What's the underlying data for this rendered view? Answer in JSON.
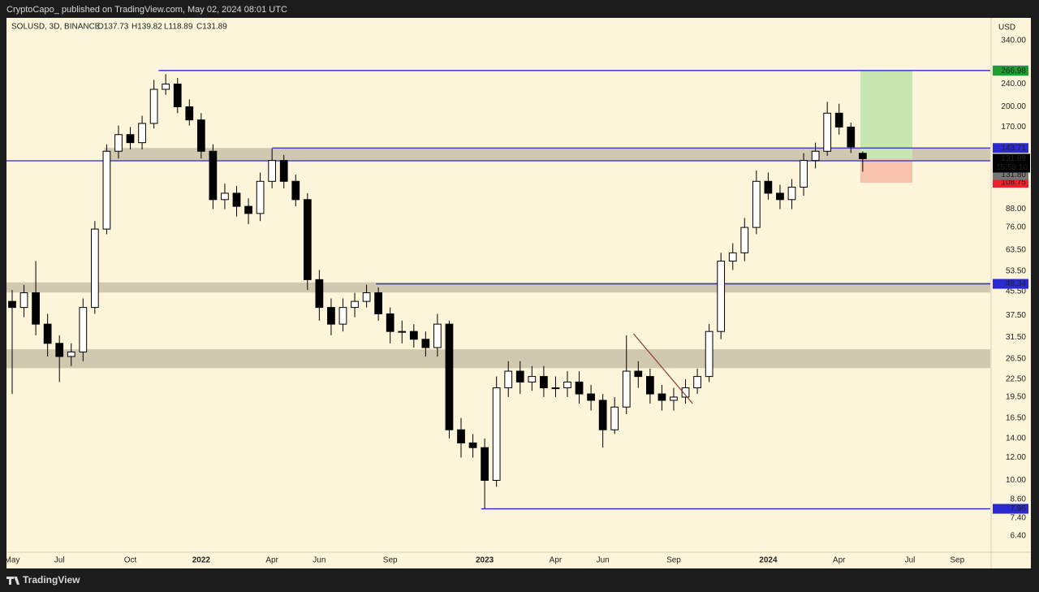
{
  "header": {
    "published": "CryptoCapo_  published on TradingView.com, May 02, 2024 08:01 UTC",
    "footer": "TradingView"
  },
  "chart_data": {
    "type": "candlestick",
    "title": "SOLUSD, 3D, BINANCE",
    "ohlc_labels": [
      "O137.73",
      "H139.82",
      "L118.89",
      "C131.89"
    ],
    "currency": "USD",
    "countdown": "15:58:10",
    "log_scale": true,
    "grid": false,
    "ylim": [
      5.62,
      408
    ],
    "xlim": [
      -0.24,
      41.4
    ],
    "yticks": [
      {
        "value": 340,
        "label": "340.00"
      },
      {
        "value": 240,
        "label": "240.00"
      },
      {
        "value": 200,
        "label": "200.00"
      },
      {
        "value": 170,
        "label": "170.00"
      },
      {
        "value": 88,
        "label": "88.00"
      },
      {
        "value": 76,
        "label": "76.00"
      },
      {
        "value": 63.5,
        "label": "63.50"
      },
      {
        "value": 53.5,
        "label": "53.50"
      },
      {
        "value": 45.5,
        "label": "45.50"
      },
      {
        "value": 37.5,
        "label": "37.50"
      },
      {
        "value": 31.5,
        "label": "31.50"
      },
      {
        "value": 26.5,
        "label": "26.50"
      },
      {
        "value": 22.5,
        "label": "22.50"
      },
      {
        "value": 19.5,
        "label": "19.50"
      },
      {
        "value": 16.5,
        "label": "16.50"
      },
      {
        "value": 14,
        "label": "14.00"
      },
      {
        "value": 12,
        "label": "12.00"
      },
      {
        "value": 10,
        "label": "10.00"
      },
      {
        "value": 8.6,
        "label": "8.60"
      },
      {
        "value": 7.4,
        "label": "7.40"
      },
      {
        "value": 6.4,
        "label": "6.40"
      }
    ],
    "xticks": [
      {
        "value": 0,
        "label": "May"
      },
      {
        "value": 2,
        "label": "Jul"
      },
      {
        "value": 5,
        "label": "Oct"
      },
      {
        "value": 8,
        "label": "2022"
      },
      {
        "value": 11,
        "label": "Apr"
      },
      {
        "value": 13,
        "label": "Jun"
      },
      {
        "value": 16,
        "label": "Sep"
      },
      {
        "value": 20,
        "label": "2023"
      },
      {
        "value": 23,
        "label": "Apr"
      },
      {
        "value": 25,
        "label": "Jun"
      },
      {
        "value": 28,
        "label": "Sep"
      },
      {
        "value": 32,
        "label": "2024"
      },
      {
        "value": 35,
        "label": "Apr"
      },
      {
        "value": 38,
        "label": "Jul"
      },
      {
        "value": 40,
        "label": "Sep"
      }
    ],
    "x": [
      0,
      0.5,
      1,
      1.5,
      2,
      2.5,
      3,
      3.5,
      4,
      4.5,
      5,
      5.5,
      6,
      6.5,
      7,
      7.5,
      8,
      8.5,
      9,
      9.5,
      10,
      10.5,
      11,
      11.5,
      12,
      12.5,
      13,
      13.5,
      14,
      14.5,
      15,
      15.5,
      16,
      16.5,
      17,
      17.5,
      18,
      18.5,
      19,
      19.5,
      20,
      20.5,
      21,
      21.5,
      22,
      22.5,
      23,
      23.5,
      24,
      24.5,
      25,
      25.5,
      26,
      26.5,
      27,
      27.5,
      28,
      28.5,
      29,
      29.5,
      30,
      30.5,
      31,
      31.5,
      32,
      32.5,
      33,
      33.5,
      34,
      34.5,
      35,
      35.5,
      36
    ],
    "open": [
      42,
      40,
      45,
      35,
      30,
      27,
      28,
      40,
      75,
      140,
      160,
      150,
      175,
      230,
      240,
      200,
      180,
      140,
      95,
      100,
      90,
      85,
      110,
      130,
      110,
      95,
      50,
      40,
      35,
      40,
      42,
      45,
      38,
      33,
      33,
      31,
      29,
      35,
      15,
      13.5,
      13,
      10,
      21,
      24,
      22,
      23,
      21,
      21,
      22,
      20,
      19,
      15,
      18,
      24,
      23,
      20,
      19,
      19.5,
      21,
      23,
      33,
      58,
      62,
      76,
      110,
      100,
      95,
      105,
      130,
      140,
      190,
      170,
      137.73
    ],
    "high": [
      46,
      48,
      58,
      38,
      32,
      30,
      43,
      80,
      148,
      172,
      170,
      186,
      248,
      260,
      252,
      212,
      190,
      148,
      108,
      106,
      96,
      118,
      143,
      136,
      116,
      100,
      54,
      43,
      43,
      45,
      48,
      47,
      40,
      36,
      35,
      33,
      38,
      36,
      16.5,
      14.5,
      14,
      23,
      26,
      26,
      25,
      25,
      23,
      24,
      24,
      21.5,
      20,
      19.5,
      32,
      26,
      24.5,
      21.5,
      21,
      22.5,
      24.5,
      35,
      62,
      67,
      82,
      120,
      118,
      107,
      112,
      138,
      150,
      208,
      205,
      176,
      139.82
    ],
    "low": [
      20,
      37,
      32,
      27,
      22,
      25,
      26,
      38,
      72,
      132,
      142,
      142,
      168,
      220,
      190,
      172,
      132,
      88,
      88,
      83,
      78,
      80,
      104,
      104,
      90,
      46,
      36,
      32,
      33,
      37,
      40,
      36,
      30,
      30,
      29,
      27,
      27,
      14,
      12,
      12,
      7.96,
      9.5,
      19.5,
      20,
      20.5,
      19.5,
      19.5,
      19.5,
      18.5,
      17.5,
      13,
      14.5,
      17,
      21,
      18.5,
      17.5,
      17.5,
      18.5,
      20,
      22,
      31,
      54,
      58,
      72,
      95,
      88,
      88,
      98,
      122,
      135,
      160,
      138,
      118.89
    ],
    "close": [
      40,
      45,
      35,
      30,
      27,
      28,
      40,
      75,
      140,
      160,
      150,
      175,
      230,
      240,
      200,
      180,
      140,
      95,
      100,
      90,
      85,
      110,
      130,
      110,
      95,
      50,
      40,
      35,
      40,
      42,
      45,
      38,
      33,
      33,
      31,
      29,
      35,
      15,
      13.5,
      13,
      10,
      21,
      24,
      22,
      23,
      21,
      21,
      22,
      20,
      19,
      15,
      18,
      24,
      23,
      20,
      19,
      19.5,
      21,
      23,
      33,
      58,
      62,
      76,
      110,
      100,
      95,
      105,
      130,
      140,
      190,
      170,
      145,
      131.89
    ],
    "up_color": "#ffffff",
    "down_color": "#000000",
    "zones": [
      {
        "low": 129.72,
        "high": 143.71,
        "from": 3.9
      },
      {
        "low": 45.1,
        "high": 48.9
      },
      {
        "low": 24.6,
        "high": 28.6
      }
    ],
    "zone_color": "#c9c0a8",
    "hlines": [
      {
        "value": 267.52,
        "from": 6.2
      },
      {
        "value": 143.71,
        "from": 11
      },
      {
        "value": 129.72
      },
      {
        "value": 48.34,
        "from": 15.4
      },
      {
        "value": 7.96,
        "from": 19.85
      }
    ],
    "line_color": "#2a2ad0",
    "trendline": {
      "x": [
        26.3,
        28.8
      ],
      "y": [
        32.4,
        18.5
      ],
      "color": "#8b3a2a"
    },
    "position": {
      "from": 35.9,
      "to": 38.1,
      "target": 266.98,
      "entry": {
        "value": 131.8,
        "label": "131.80"
      },
      "stop": 108.75,
      "profit_color": "#c8e6b0",
      "loss_color": "#f6c3aa",
      "target_color": "#1e9e2e",
      "stop_color": "#f0202a"
    }
  }
}
